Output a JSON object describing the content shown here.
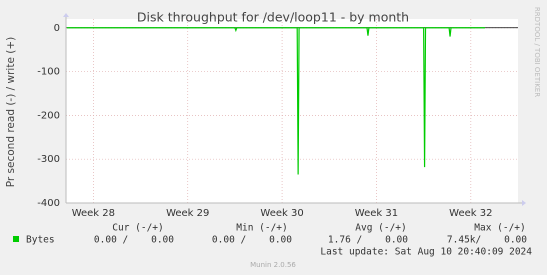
{
  "chart_data": {
    "type": "line",
    "title": "Disk throughput for /dev/loop11 - by month",
    "y_label": "Pr second read (-) / write (+)",
    "side_text": "RRDTOOL / TOBI OETIKER",
    "x": [
      27.72,
      29.5,
      29.51,
      29.52,
      30.16,
      30.17,
      30.18,
      30.9,
      30.91,
      30.92,
      31.5,
      31.51,
      31.52,
      31.77,
      31.78,
      31.79,
      32.15
    ],
    "series": [
      {
        "name": "Bytes",
        "color": "#00cc00",
        "values": [
          0,
          0,
          -6,
          0,
          0,
          -335,
          0,
          0,
          -18,
          0,
          0,
          -318,
          0,
          0,
          -20,
          0,
          0
        ]
      }
    ],
    "xlim": [
      27.71,
      32.5
    ],
    "xticks": [
      {
        "value": 28,
        "label": "Week 28"
      },
      {
        "value": 29,
        "label": "Week 29"
      },
      {
        "value": 30,
        "label": "Week 30"
      },
      {
        "value": 31,
        "label": "Week 31"
      },
      {
        "value": 32,
        "label": "Week 32"
      }
    ],
    "ylim": [
      -400,
      20
    ],
    "yticks": [
      0,
      -100,
      -200,
      -300,
      -400
    ],
    "grid": true,
    "legend": {
      "headers": [
        "Cur (-/+)",
        "Min (-/+)",
        "Avg (-/+)",
        "Max (-/+)"
      ],
      "cells": [
        "0.00 /    0.00",
        "0.00 /    0.00",
        "1.76 /    0.00",
        "7.45k/    0.00"
      ]
    },
    "last_update": "Last update: Sat Aug 10 20:40:09 2024",
    "footer": "Munin 2.0.56"
  }
}
